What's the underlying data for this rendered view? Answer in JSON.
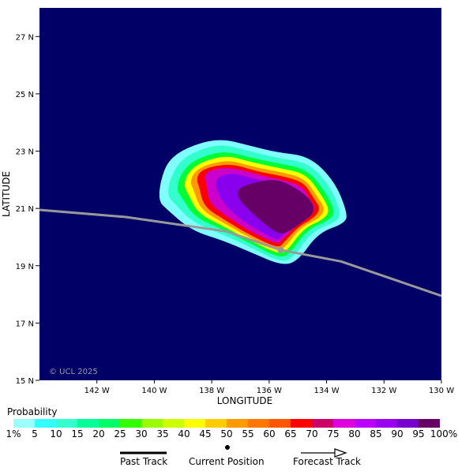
{
  "map": {
    "xlabel": "LONGITUDE",
    "ylabel": "LATITUDE",
    "copyright": "© UCL 2025",
    "background_color": "#000066",
    "x_ticks": [
      "142 W",
      "140 W",
      "138 W",
      "136 W",
      "134 W",
      "132 W",
      "130 W"
    ],
    "y_ticks": [
      "27 N",
      "25 N",
      "23 N",
      "21 N",
      "19 N",
      "17 N",
      "15 N"
    ],
    "lon_range": [
      144,
      130
    ],
    "lat_range": [
      15,
      28
    ],
    "track_color": "#999999",
    "track": [
      [
        144.0,
        20.95
      ],
      [
        141.0,
        20.7
      ],
      [
        137.5,
        20.2
      ],
      [
        135.6,
        19.55
      ],
      [
        133.5,
        19.15
      ],
      [
        130.0,
        17.95
      ]
    ],
    "current_position": [
      135.6,
      19.55
    ],
    "probability_contours": [
      {
        "level": 1,
        "color": "#80ffff"
      },
      {
        "level": 10,
        "color": "#33ffcc"
      },
      {
        "level": 25,
        "color": "#00ff33"
      },
      {
        "level": 35,
        "color": "#ffff00"
      },
      {
        "level": 50,
        "color": "#ff9900"
      },
      {
        "level": 60,
        "color": "#ff0000"
      },
      {
        "level": 70,
        "color": "#cc00cc"
      },
      {
        "level": 85,
        "color": "#8800ee"
      },
      {
        "level": 95,
        "color": "#660066"
      }
    ]
  },
  "legend": {
    "title": "Probability",
    "scale_labels": [
      "1%",
      "5",
      "10",
      "15",
      "20",
      "25",
      "30",
      "35",
      "40",
      "45",
      "50",
      "55",
      "60",
      "65",
      "70",
      "75",
      "80",
      "85",
      "90",
      "95",
      "100%"
    ],
    "colors": [
      "#99ffff",
      "#33ffff",
      "#33ffcc",
      "#00ff99",
      "#00ff66",
      "#33ff00",
      "#99ff00",
      "#ccff00",
      "#ffff00",
      "#ffcc00",
      "#ff9900",
      "#ff7700",
      "#ff5500",
      "#ff0000",
      "#cc0066",
      "#dd00dd",
      "#bb00ff",
      "#9900ee",
      "#7700cc",
      "#660066"
    ],
    "past_track_label": "Past Track",
    "current_position_label": "Current Position",
    "forecast_track_label": "Forecast Track"
  }
}
